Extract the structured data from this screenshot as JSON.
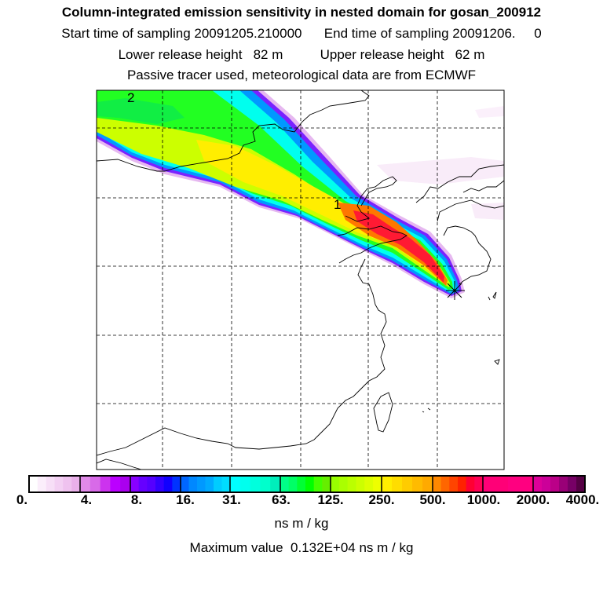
{
  "title": "Column-integrated emission sensitivity in nested domain for gosan_200912",
  "sampling_line": "Start time of sampling 20091205.210000      End time of sampling 20091206.     0",
  "release_line": "Lower release height   82 m          Upper release height   62 m",
  "tracer_line": "Passive tracer used, meteorological data are from ECMWF",
  "map": {
    "labels": [
      "1",
      "2"
    ],
    "receptor_marker": "star-icon"
  },
  "colorbar": {
    "tick_labels": [
      "0.",
      "4.",
      "8.",
      "16.",
      "31.",
      "63.",
      "125.",
      "250.",
      "500.",
      "1000.",
      "2000.",
      "4000."
    ],
    "segments": [
      [
        "#ffffff",
        "#fbeefb",
        "#f7dff7",
        "#f3d0f3",
        "#efc2ef",
        "#eab0ea"
      ],
      [
        "#e08ae8",
        "#d86ae8",
        "#cc33ee",
        "#bb00ff",
        "#aa00ee"
      ],
      [
        "#8800ff",
        "#6600ff",
        "#5500ff",
        "#3300ff",
        "#1100ff",
        "#0033ff"
      ],
      [
        "#0066ff",
        "#0088ff",
        "#0099ff",
        "#00aaff",
        "#00ccff",
        "#00ddff"
      ],
      [
        "#00ffff",
        "#00ffee",
        "#00ffdd",
        "#00ffcc",
        "#00eebb"
      ],
      [
        "#00ff88",
        "#00ff66",
        "#00ff33",
        "#00ff00",
        "#44ff00",
        "#66ee00"
      ],
      [
        "#99ff00",
        "#aaff00",
        "#bbff00",
        "#ccff00",
        "#ddff00",
        "#eeff00"
      ],
      [
        "#ffee00",
        "#ffdd00",
        "#ffcc00",
        "#ffbb00",
        "#ffaa00"
      ],
      [
        "#ff8800",
        "#ff6600",
        "#ff4400",
        "#ff2200",
        "#ff0033",
        "#ff0055"
      ],
      [
        "#ff0077",
        "#ff0080"
      ],
      [
        "#dd0099",
        "#cc0099",
        "#bb0088",
        "#990077",
        "#770066",
        "#550044"
      ]
    ]
  },
  "units": "ns m / kg",
  "max_value_line": "Maximum value  0.132E+04 ns m / kg"
}
